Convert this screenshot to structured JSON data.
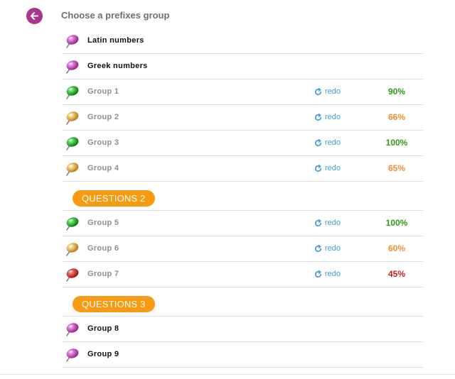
{
  "header": {
    "title": "Choose a prefixes group",
    "back_icon": "arrow-left-icon"
  },
  "colors": {
    "back_button": "#a9358f",
    "pin_purple": "#c54fb3",
    "pin_green": "#2fa82f",
    "pin_orange": "#f3a348",
    "pin_red": "#d23a36",
    "pct_green": "#2e9d14",
    "pct_orange": "#f08e2b",
    "pct_red": "#c81b1b",
    "redo": "#3d9fce",
    "badge": "#f79a12"
  },
  "rows": [
    {
      "kind": "item",
      "label": "Latin numbers",
      "pin": "purple"
    },
    {
      "kind": "item",
      "label": "Greek numbers",
      "pin": "purple"
    },
    {
      "kind": "item",
      "label": "Group 1",
      "pin": "green",
      "redo": "redo",
      "pct": "90%",
      "pct_color": "green"
    },
    {
      "kind": "item",
      "label": "Group 2",
      "pin": "orange",
      "redo": "redo",
      "pct": "66%",
      "pct_color": "orange"
    },
    {
      "kind": "item",
      "label": "Group 3",
      "pin": "green",
      "redo": "redo",
      "pct": "100%",
      "pct_color": "green"
    },
    {
      "kind": "item",
      "label": "Group 4",
      "pin": "orange",
      "redo": "redo",
      "pct": "65%",
      "pct_color": "orange"
    },
    {
      "kind": "section",
      "label": "QUESTIONS 2"
    },
    {
      "kind": "item",
      "label": "Group 5",
      "pin": "green",
      "redo": "redo",
      "pct": "100%",
      "pct_color": "green"
    },
    {
      "kind": "item",
      "label": "Group 6",
      "pin": "orange",
      "redo": "redo",
      "pct": "60%",
      "pct_color": "orange"
    },
    {
      "kind": "item",
      "label": "Group 7",
      "pin": "red",
      "redo": "redo",
      "pct": "45%",
      "pct_color": "red"
    },
    {
      "kind": "section",
      "label": "QUESTIONS 3"
    },
    {
      "kind": "item",
      "label": "Group 8",
      "pin": "purple"
    },
    {
      "kind": "item",
      "label": "Group 9",
      "pin": "purple"
    }
  ]
}
